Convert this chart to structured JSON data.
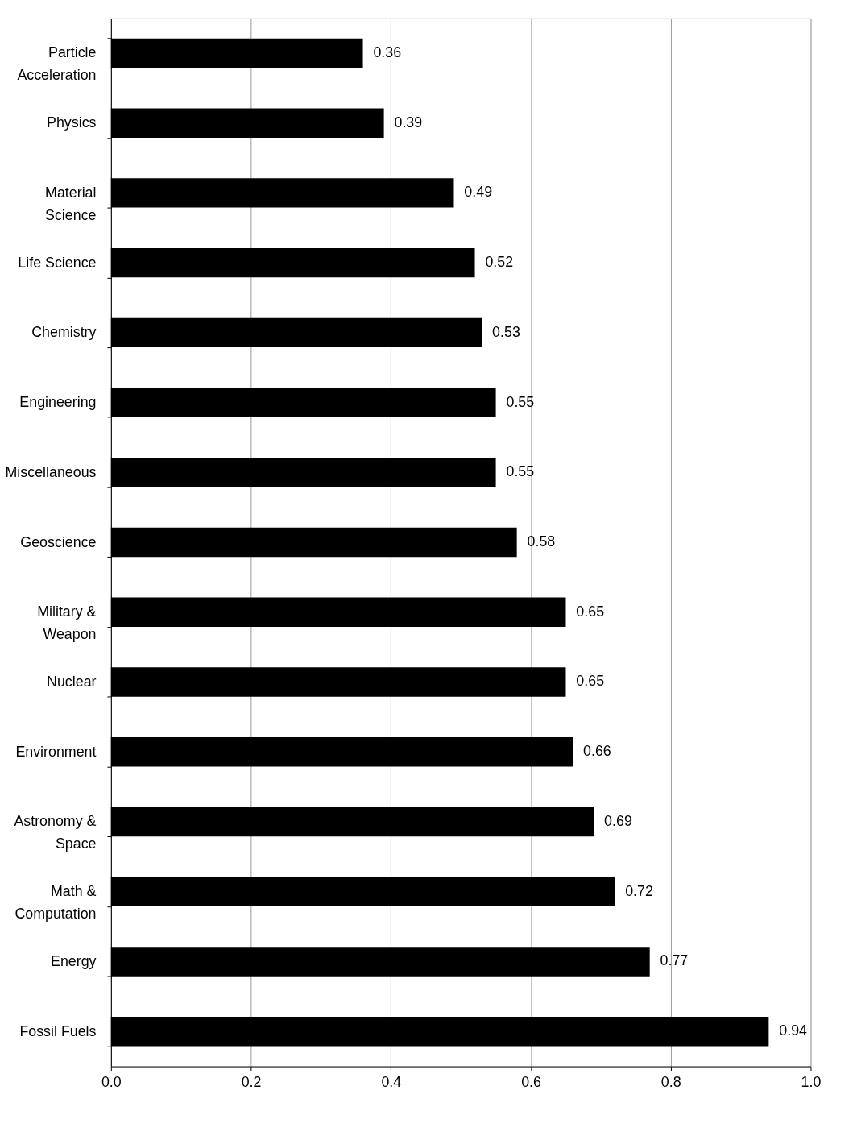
{
  "chart_data": {
    "type": "bar",
    "orientation": "horizontal",
    "categories": [
      "Particle Acceleration",
      "Physics",
      "Material Science",
      "Life Science",
      "Chemistry",
      "Engineering",
      "Miscellaneous",
      "Geoscience",
      "Military & Weapon",
      "Nuclear",
      "Environment",
      "Astronomy & Space",
      "Math & Computation",
      "Energy",
      "Fossil Fuels"
    ],
    "values": [
      0.36,
      0.39,
      0.49,
      0.52,
      0.53,
      0.55,
      0.55,
      0.58,
      0.65,
      0.65,
      0.66,
      0.69,
      0.72,
      0.77,
      0.94
    ],
    "color": "#000000",
    "xlim": [
      0,
      1
    ],
    "xticks": [
      {
        "value": 0,
        "label": "0.0"
      },
      {
        "value": 0.2,
        "label": "0.2"
      },
      {
        "value": 0.4,
        "label": "0.4"
      },
      {
        "value": 0.6,
        "label": "0.6"
      },
      {
        "value": 0.8,
        "label": "0.8"
      },
      {
        "value": 1,
        "label": "1.0"
      }
    ],
    "grid": "x",
    "data_labels": true
  }
}
